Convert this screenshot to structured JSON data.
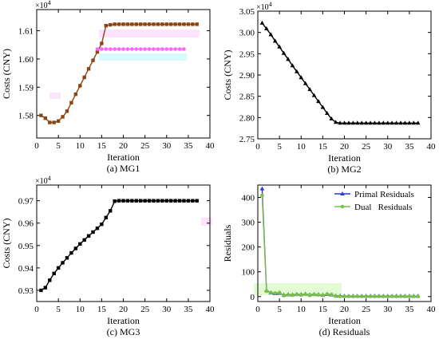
{
  "chart_data": [
    {
      "id": "mg1",
      "type": "line",
      "caption": "(a) MG1",
      "xlabel": "Iteration",
      "ylabel": "Costs (CNY)",
      "multiplier": "×10",
      "multiplier_exp": "4",
      "xlim": [
        0,
        40
      ],
      "ylim": [
        1.572,
        1.6175
      ],
      "xticks": [
        0,
        5,
        10,
        15,
        20,
        25,
        30,
        35,
        40
      ],
      "yticks": [
        1.58,
        1.59,
        1.6,
        1.61
      ],
      "ytick_labels": [
        "1.58",
        "1.59",
        "1.60",
        "1.61"
      ],
      "series": [
        {
          "name": "",
          "color": "#8b4513",
          "marker": "square",
          "x": [
            1,
            2,
            3,
            4,
            5,
            6,
            7,
            8,
            9,
            10,
            11,
            12,
            13,
            14,
            15,
            16,
            17,
            18,
            19,
            20,
            21,
            22,
            23,
            24,
            25,
            26,
            27,
            28,
            29,
            30,
            31,
            32,
            33,
            34,
            35,
            36,
            37
          ],
          "y": [
            1.58,
            1.579,
            1.5775,
            1.5775,
            1.578,
            1.5795,
            1.5815,
            1.5845,
            1.5875,
            1.5905,
            1.5935,
            1.5965,
            1.5995,
            1.6025,
            1.6055,
            1.6118,
            1.6121,
            1.6123,
            1.6123,
            1.6123,
            1.6123,
            1.6123,
            1.6123,
            1.6123,
            1.6123,
            1.6123,
            1.6123,
            1.6123,
            1.6123,
            1.6123,
            1.6123,
            1.6123,
            1.6123,
            1.6123,
            1.6123,
            1.6123,
            1.6123
          ]
        },
        {
          "name": "",
          "color": "#ff66ff",
          "marker": "dot",
          "x": [
            14,
            15,
            16,
            17,
            18,
            19,
            20,
            21,
            22,
            23,
            24,
            25,
            26,
            27,
            28,
            29,
            30,
            31,
            32,
            33,
            34
          ],
          "y": [
            1.6035,
            1.6035,
            1.6035,
            1.6035,
            1.6035,
            1.6035,
            1.6035,
            1.6035,
            1.6035,
            1.6035,
            1.6035,
            1.6035,
            1.6035,
            1.6035,
            1.6035,
            1.6035,
            1.6035,
            1.6035,
            1.6035,
            1.6035,
            1.6035
          ]
        }
      ]
    },
    {
      "id": "mg2",
      "type": "line",
      "caption": "(b) MG2",
      "xlabel": "Iteration",
      "ylabel": "Costs (CNY)",
      "multiplier": "×10",
      "multiplier_exp": "4",
      "xlim": [
        0,
        40
      ],
      "ylim": [
        2.75,
        3.05
      ],
      "xticks": [
        0,
        5,
        10,
        15,
        20,
        25,
        30,
        35,
        40
      ],
      "yticks": [
        2.75,
        2.8,
        2.85,
        2.9,
        2.95,
        3.0,
        3.05
      ],
      "ytick_labels": [
        "2.75",
        "2.80",
        "2.85",
        "2.90",
        "2.95",
        "3.00",
        "3.05"
      ],
      "series": [
        {
          "name": "",
          "color": "#000000",
          "marker": "triangle",
          "x": [
            1,
            2,
            3,
            4,
            5,
            6,
            7,
            8,
            9,
            10,
            11,
            12,
            13,
            14,
            15,
            16,
            17,
            18,
            19,
            20,
            21,
            22,
            23,
            24,
            25,
            26,
            27,
            28,
            29,
            30,
            31,
            32,
            33,
            34,
            35,
            36,
            37
          ],
          "y": [
            3.022,
            3.009,
            2.995,
            2.98,
            2.966,
            2.951,
            2.937,
            2.922,
            2.908,
            2.894,
            2.88,
            2.866,
            2.852,
            2.838,
            2.824,
            2.81,
            2.797,
            2.789,
            2.787,
            2.787,
            2.787,
            2.787,
            2.787,
            2.787,
            2.787,
            2.787,
            2.787,
            2.787,
            2.787,
            2.787,
            2.787,
            2.787,
            2.787,
            2.787,
            2.787,
            2.787,
            2.787
          ]
        }
      ]
    },
    {
      "id": "mg3",
      "type": "line",
      "caption": "(c) MG3",
      "xlabel": "Iteration",
      "ylabel": "Costs (CNY)",
      "multiplier": "×10",
      "multiplier_exp": "4",
      "xlim": [
        0,
        40
      ],
      "ylim": [
        0.925,
        0.977
      ],
      "xticks": [
        0,
        5,
        10,
        15,
        20,
        25,
        30,
        35,
        40
      ],
      "yticks": [
        0.93,
        0.94,
        0.95,
        0.96,
        0.97
      ],
      "ytick_labels": [
        "0.93",
        "0.94",
        "0.95",
        "0.96",
        "0.97"
      ],
      "series": [
        {
          "name": "",
          "color": "#000000",
          "marker": "square",
          "x": [
            1,
            2,
            3,
            4,
            5,
            6,
            7,
            8,
            9,
            10,
            11,
            12,
            13,
            14,
            15,
            16,
            17,
            18,
            19,
            20,
            21,
            22,
            23,
            24,
            25,
            26,
            27,
            28,
            29,
            30,
            31,
            32,
            33,
            34,
            35,
            36,
            37
          ],
          "y": [
            0.93,
            0.9312,
            0.9345,
            0.9375,
            0.94,
            0.9423,
            0.9445,
            0.9467,
            0.9487,
            0.9507,
            0.9525,
            0.9543,
            0.956,
            0.9577,
            0.9595,
            0.9625,
            0.9655,
            0.9698,
            0.97,
            0.97,
            0.97,
            0.97,
            0.97,
            0.97,
            0.97,
            0.97,
            0.97,
            0.97,
            0.97,
            0.97,
            0.97,
            0.97,
            0.97,
            0.97,
            0.97,
            0.97,
            0.97
          ]
        }
      ]
    },
    {
      "id": "residuals",
      "type": "line",
      "caption": "(d) Residuals",
      "xlabel": "Iteration",
      "ylabel": "Residuals",
      "xlim": [
        0,
        40
      ],
      "ylim": [
        -20,
        450
      ],
      "xticks": [
        0,
        5,
        10,
        15,
        20,
        25,
        30,
        35,
        40
      ],
      "yticks": [
        0,
        100,
        200,
        300,
        400
      ],
      "ytick_labels": [
        "0",
        "100",
        "200",
        "300",
        "400"
      ],
      "legend_position": "top-right",
      "series": [
        {
          "name": "Primal Residuals",
          "color": "#2a3bd6",
          "marker": "triangle",
          "x": [
            1,
            2,
            3,
            4,
            5,
            6,
            7,
            8,
            9,
            10,
            11,
            12,
            13,
            14,
            15,
            16,
            17,
            18,
            19,
            20,
            21,
            22,
            23,
            24,
            25,
            26,
            27,
            28,
            29,
            30,
            31,
            32,
            33,
            34,
            35,
            36,
            37
          ],
          "y": [
            435,
            25,
            15,
            12,
            14,
            6,
            8,
            7,
            9,
            8,
            10,
            7,
            9,
            8,
            6,
            9,
            7,
            3,
            3,
            2,
            2,
            2,
            2,
            2,
            2,
            2,
            2,
            2,
            2,
            2,
            2,
            2,
            2,
            2,
            2,
            2,
            2
          ]
        },
        {
          "name": "Dual   Residuals",
          "color": "#7ac143",
          "marker": "dot",
          "x": [
            1,
            2,
            3,
            4,
            5,
            6,
            7,
            8,
            9,
            10,
            11,
            12,
            13,
            14,
            15,
            16,
            17,
            18,
            19,
            20,
            21,
            22,
            23,
            24,
            25,
            26,
            27,
            28,
            29,
            30,
            31,
            32,
            33,
            34,
            35,
            36,
            37
          ],
          "y": [
            408,
            22,
            16,
            14,
            16,
            4,
            7,
            6,
            8,
            6,
            9,
            5,
            8,
            7,
            5,
            10,
            8,
            2,
            1,
            1,
            1,
            1,
            1,
            1,
            1,
            1,
            1,
            1,
            1,
            1,
            1,
            1,
            1,
            1,
            1,
            1,
            1
          ]
        }
      ]
    }
  ]
}
